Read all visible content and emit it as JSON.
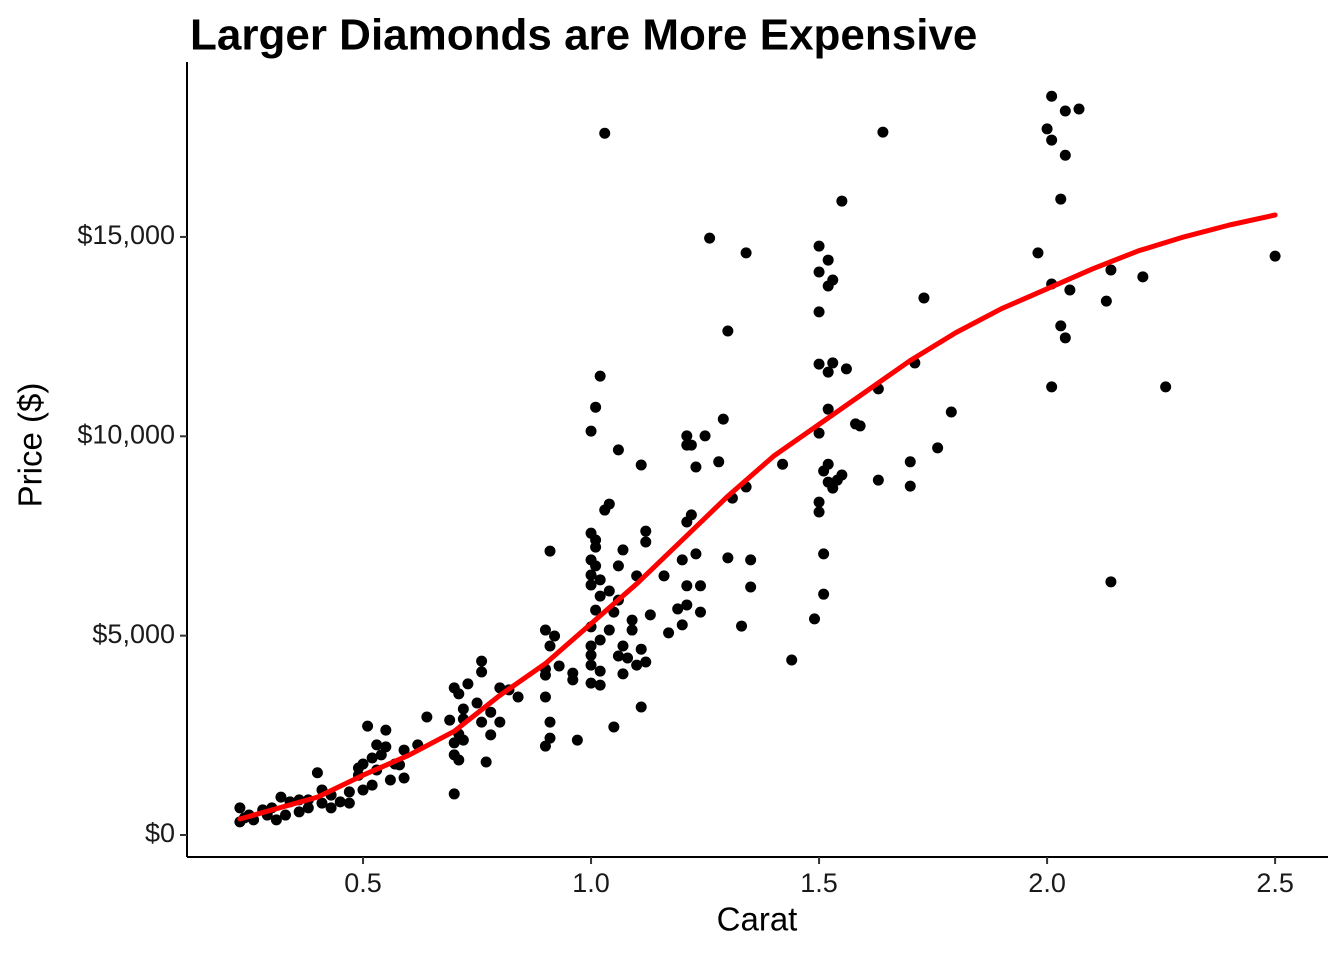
{
  "chart_data": {
    "type": "scatter",
    "title": "Larger Diamonds are More Expensive",
    "x_label": "Carat",
    "y_label": "Price ($)",
    "color": "#000000",
    "x": [
      1.03,
      2.01,
      2.04,
      2.07,
      2.0,
      2.01,
      2.04,
      2.03,
      1.64,
      1.55,
      1.26,
      1.34,
      1.5,
      1.52,
      1.5,
      1.53,
      1.52,
      1.98,
      2.5,
      2.14,
      2.21,
      2.01,
      2.05,
      1.73,
      2.13,
      1.5,
      2.03,
      2.04,
      1.3,
      1.02,
      1.5,
      1.53,
      1.71,
      1.52,
      1.56,
      1.63,
      2.01,
      2.26,
      1.01,
      1.52,
      1.29,
      1.79,
      1.58,
      1.59,
      1.0,
      1.5,
      1.21,
      1.25,
      1.21,
      1.22,
      1.06,
      1.76,
      1.11,
      1.23,
      1.28,
      1.42,
      1.52,
      1.51,
      1.7,
      1.63,
      1.52,
      1.55,
      1.53,
      1.54,
      1.7,
      1.34,
      1.31,
      1.04,
      1.03,
      1.5,
      1.5,
      1.22,
      1.21,
      1.0,
      1.12,
      1.01,
      1.01,
      1.12,
      0.91,
      1.07,
      1.23,
      1.51,
      1.0,
      1.01,
      1.3,
      1.35,
      1.06,
      1.0,
      1.02,
      1.1,
      1.16,
      1.0,
      1.04,
      1.21,
      1.24,
      1.35,
      1.2,
      1.51,
      1.02,
      1.06,
      1.01,
      1.05,
      1.19,
      1.21,
      1.13,
      1.24,
      1.09,
      1.49,
      1.0,
      1.04,
      1.09,
      1.2,
      1.33,
      0.9,
      0.92,
      1.02,
      1.17,
      1.0,
      0.91,
      1.07,
      1.11,
      1.0,
      1.06,
      1.08,
      1.12,
      1.44,
      0.76,
      1.0,
      0.93,
      1.1,
      0.9,
      1.02,
      0.96,
      1.07,
      0.76,
      0.96,
      0.9,
      1.0,
      1.02,
      0.73,
      0.7,
      0.8,
      0.82,
      0.71,
      0.9,
      0.84,
      0.75,
      1.11,
      0.72,
      0.78,
      0.72,
      1.05,
      0.69,
      0.76,
      0.51,
      0.64,
      0.8,
      0.91,
      0.78,
      0.71,
      0.55,
      0.91,
      0.97,
      0.7,
      0.72,
      0.53,
      0.9,
      0.55,
      0.59,
      0.7,
      0.62,
      0.71,
      0.77,
      0.5,
      0.57,
      0.53,
      0.49,
      0.59,
      0.56,
      0.52,
      0.7,
      0.4,
      0.47,
      0.5,
      0.41,
      0.43,
      0.38,
      0.45,
      0.34,
      0.32,
      0.3,
      0.36,
      0.28,
      0.25,
      0.23,
      0.23,
      0.26,
      0.33,
      0.41,
      0.31,
      0.38,
      0.24,
      0.29,
      0.36,
      0.47,
      0.43,
      0.49,
      0.52,
      0.54,
      0.58,
      2.14
    ],
    "values": [
      17600,
      18530,
      18160,
      18210,
      17710,
      17430,
      17050,
      15950,
      17630,
      15900,
      14970,
      14600,
      14770,
      14420,
      14120,
      13920,
      13770,
      14600,
      14520,
      14170,
      14000,
      13820,
      13670,
      13470,
      13390,
      13120,
      12770,
      12470,
      12640,
      11510,
      11810,
      11840,
      11840,
      11610,
      11690,
      11190,
      11240,
      11240,
      10730,
      10680,
      10430,
      10610,
      10310,
      10260,
      10130,
      10080,
      10010,
      10010,
      9780,
      9780,
      9660,
      9710,
      9280,
      9230,
      9360,
      9300,
      9300,
      9130,
      9360,
      8900,
      8850,
      9030,
      8700,
      8900,
      8750,
      8730,
      8450,
      8300,
      8150,
      8350,
      8100,
      8030,
      7850,
      7570,
      7620,
      7400,
      7220,
      7350,
      7120,
      7150,
      7050,
      7050,
      6900,
      6750,
      6950,
      6900,
      6750,
      6520,
      6400,
      6500,
      6500,
      6270,
      6120,
      6250,
      6250,
      6220,
      6900,
      6040,
      5990,
      5890,
      5640,
      5590,
      5670,
      5770,
      5520,
      5590,
      5390,
      5420,
      5220,
      5140,
      5140,
      5270,
      5240,
      5140,
      4990,
      4890,
      5070,
      4740,
      4740,
      4740,
      4660,
      4510,
      4490,
      4440,
      4340,
      4390,
      4360,
      4260,
      4240,
      4260,
      4160,
      4110,
      4060,
      4040,
      4090,
      3890,
      4010,
      3810,
      3760,
      3790,
      3690,
      3690,
      3640,
      3540,
      3460,
      3460,
      3310,
      3210,
      3160,
      3080,
      2910,
      2710,
      2880,
      2830,
      2730,
      2960,
      2830,
      2830,
      2510,
      2530,
      2630,
      2430,
      2380,
      2310,
      2380,
      2260,
      2230,
      2210,
      2130,
      2010,
      2260,
      1880,
      1830,
      1780,
      1780,
      1630,
      1500,
      1430,
      1380,
      1250,
      1030,
      1560,
      1080,
      1130,
      1130,
      1000,
      880,
      830,
      830,
      950,
      680,
      580,
      630,
      500,
      680,
      330,
      380,
      500,
      800,
      380,
      680,
      430,
      500,
      880,
      800,
      680,
      1680,
      1930,
      2010,
      1760,
      6350
    ],
    "fit": {
      "color": "#ff0000",
      "x": [
        0.23,
        0.4,
        0.5,
        0.6,
        0.7,
        0.8,
        0.9,
        1.0,
        1.1,
        1.2,
        1.3,
        1.4,
        1.5,
        1.6,
        1.7,
        1.8,
        1.9,
        2.0,
        2.1,
        2.2,
        2.3,
        2.4,
        2.5
      ],
      "values": [
        400,
        950,
        1500,
        2000,
        2600,
        3500,
        4300,
        5300,
        6300,
        7400,
        8500,
        9500,
        10300,
        11100,
        11900,
        12600,
        13200,
        13700,
        14200,
        14650,
        15000,
        15300,
        15550
      ]
    },
    "xlim": [
      0.114,
      2.616
    ],
    "ylim": [
      -552,
      19388
    ],
    "xticks": [
      0.5,
      {
        "value": 1,
        "label": "1.0"
      },
      1.5,
      {
        "value": 2,
        "label": "2.0"
      },
      2.5
    ],
    "yticks": [
      {
        "value": 0,
        "label": "$0"
      },
      {
        "value": 5000,
        "label": "$5,000"
      },
      {
        "value": 10000,
        "label": "$10,000"
      },
      {
        "value": 15000,
        "label": "$15,000"
      }
    ],
    "grid": false
  }
}
